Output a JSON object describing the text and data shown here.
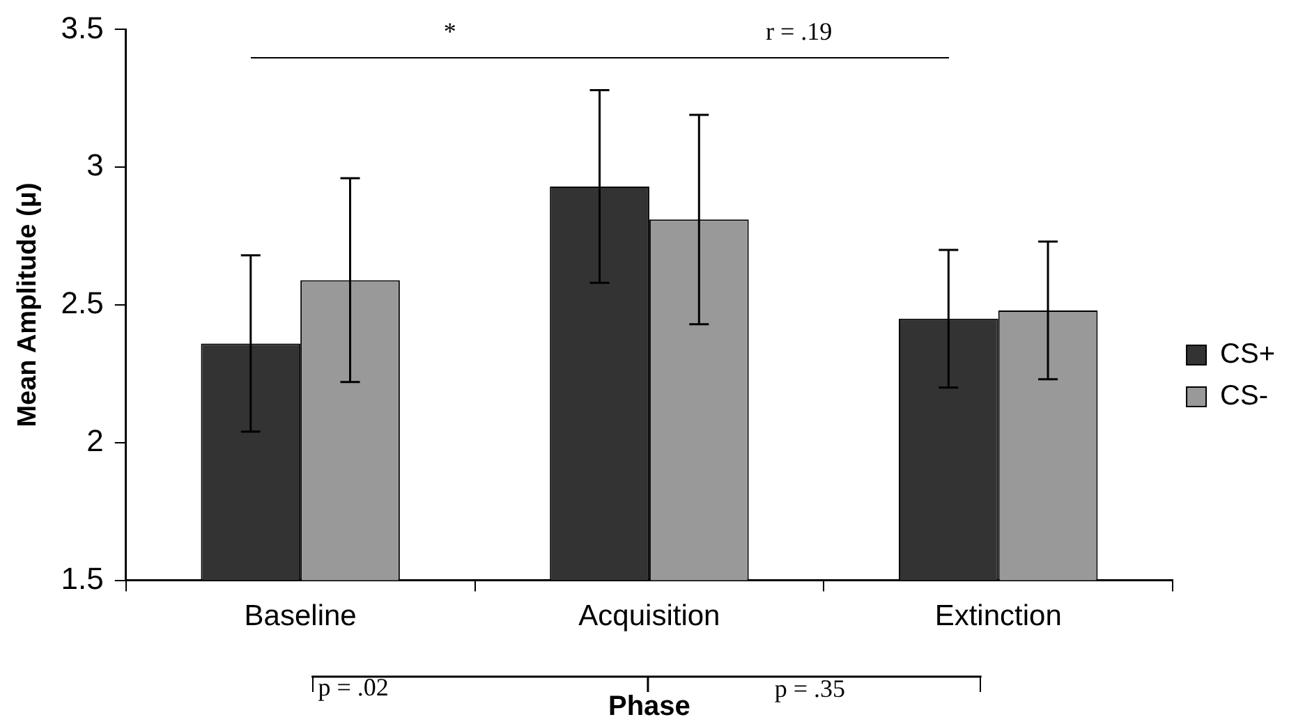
{
  "chart_data": {
    "type": "bar",
    "xlabel": "Phase",
    "ylabel": "Mean Amplitude (μ)",
    "categories": [
      "Baseline",
      "Acquisition",
      "Extinction"
    ],
    "series": [
      {
        "name": "CS+",
        "color": "#333333",
        "values": [
          2.36,
          2.93,
          2.45
        ],
        "errors": [
          [
            2.04,
            2.68
          ],
          [
            2.58,
            3.28
          ],
          [
            2.2,
            2.7
          ]
        ]
      },
      {
        "name": "CS-",
        "color": "#999999",
        "values": [
          2.59,
          2.81,
          2.48
        ],
        "errors": [
          [
            2.22,
            2.96
          ],
          [
            2.43,
            3.19
          ],
          [
            2.23,
            2.73
          ]
        ]
      }
    ],
    "ylim": [
      1.5,
      3.5
    ],
    "yticks": [
      1.5,
      2,
      2.5,
      3,
      3.5
    ],
    "grid": false,
    "legend": "right",
    "annotations": [
      "*",
      "r = .19",
      "p = .02",
      "p = .35"
    ]
  }
}
